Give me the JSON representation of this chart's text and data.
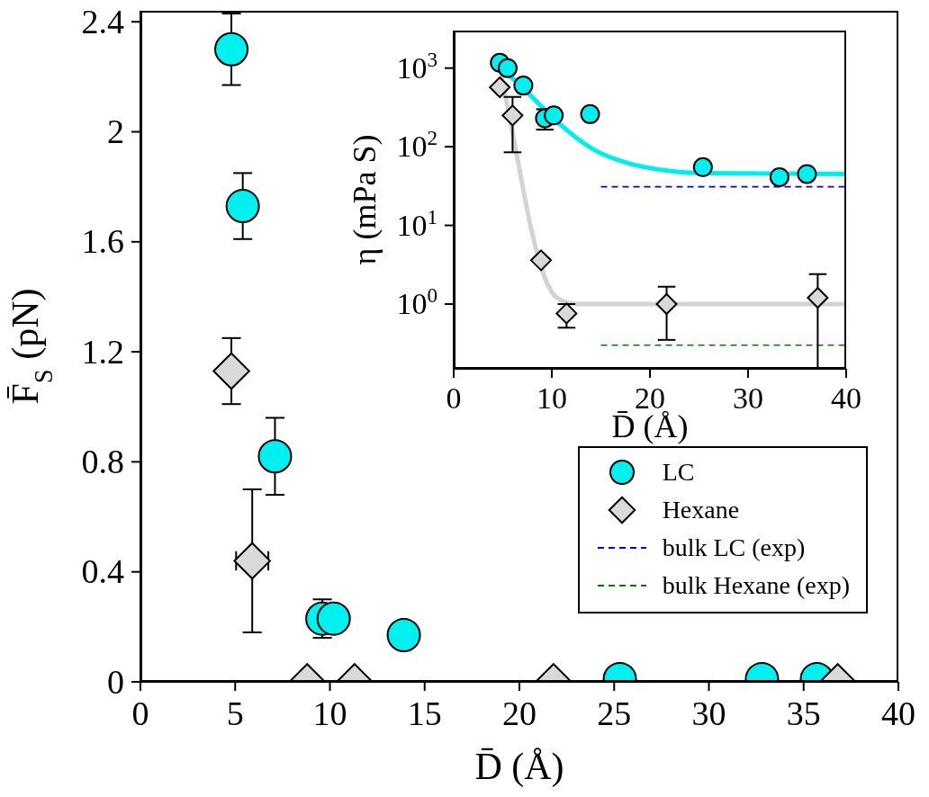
{
  "chart_data": [
    {
      "type": "scatter",
      "xlabel": "D̄ (Å)",
      "ylabel": "F̄$_{S}$ (pN)",
      "xlim": [
        0,
        40
      ],
      "xticks": [
        0,
        5,
        10,
        15,
        20,
        25,
        30,
        35,
        40
      ],
      "ylim": [
        0,
        2.44
      ],
      "yticks": [
        0,
        0.4,
        0.8,
        1.2,
        1.6,
        2,
        2.4
      ],
      "legend": "bottom right",
      "series": [
        {
          "name": "LC",
          "color": "#00f0f0",
          "marker": "circle",
          "x": [
            4.8,
            5.4,
            7.1,
            9.6,
            10.2,
            13.9,
            25.3,
            32.8,
            35.7
          ],
          "values": [
            2.3,
            1.73,
            0.82,
            0.23,
            0.23,
            0.17,
            0.01,
            0.01,
            0.01
          ],
          "errors": [
            0.13,
            0.12,
            0.14,
            0.07,
            null,
            null,
            null,
            null,
            null
          ]
        },
        {
          "name": "Hexane",
          "color": "#d9d9d9",
          "marker": "diamond",
          "x": [
            4.8,
            5.9,
            8.8,
            11.3,
            21.8,
            36.8
          ],
          "values": [
            1.13,
            0.44,
            0,
            0,
            0,
            0
          ],
          "errors": [
            0.12,
            0.26,
            null,
            null,
            null,
            null
          ],
          "xerrors": [
            null,
            0.85,
            null,
            null,
            null,
            null
          ]
        }
      ]
    },
    {
      "type": "scatter",
      "xlabel": "D̄ (Å)",
      "ylabel": "η (mPa S)",
      "log": "y",
      "xlim": [
        0,
        40
      ],
      "xticks": [
        0,
        10,
        20,
        30,
        40
      ],
      "ylim": [
        0.15,
        3000
      ],
      "yticks": [
        {
          "value": 1,
          "label": "10$^{0}$"
        },
        {
          "value": 10,
          "label": "10$^{1}$"
        },
        {
          "value": 100,
          "label": "10$^{2}$"
        },
        {
          "value": 1000,
          "label": "10$^{3}$"
        }
      ],
      "series": [
        {
          "type": "line",
          "color": "#00eeee",
          "x": [
            4.85,
            7.6,
            10.6,
            14.2,
            17.9,
            21.6,
            25.3,
            40
          ],
          "values": [
            1000,
            480,
            205,
            93,
            61,
            50,
            46,
            45
          ]
        },
        {
          "type": "line",
          "color": "#d3d3d3",
          "x": [
            4.7,
            5.8,
            6.9,
            8,
            9.1,
            10.6,
            12.4,
            40
          ],
          "values": [
            1000,
            205,
            38,
            7.9,
            2.5,
            1.18,
            1,
            1
          ]
        },
        {
          "type": "line",
          "name": "bulk LC (exp)",
          "color": "#0000ff",
          "line_style": "dashed",
          "x": [
            15,
            40
          ],
          "values": [
            31,
            31
          ]
        },
        {
          "type": "line",
          "name": "bulk Hexane (exp)",
          "color": "#008000",
          "line_style": "dashed",
          "x": [
            15,
            40
          ],
          "values": [
            0.3,
            0.3
          ]
        },
        {
          "color": "#00f0f0",
          "marker": "circle",
          "x": [
            4.7,
            5.5,
            7.1,
            9.3,
            10.2,
            13.9,
            25.4,
            33.2,
            36
          ],
          "values": [
            1170,
            1000,
            600,
            230,
            250,
            260,
            55,
            41,
            45
          ],
          "errors": [
            null,
            null,
            null,
            [
              165,
              300
            ],
            null,
            null,
            null,
            null,
            null
          ]
        },
        {
          "color": "#d9d9d9",
          "marker": "diamond",
          "x": [
            4.7,
            6,
            8.9,
            11.5,
            21.7,
            37.1
          ],
          "values": [
            570,
            250,
            3.6,
            0.76,
            1,
            1.2
          ],
          "errors": [
            null,
            [
              85,
              430
            ],
            null,
            [
              0.5,
              1
            ],
            [
              0.35,
              1.66
            ],
            [
              0.15,
              2.4
            ]
          ]
        }
      ]
    }
  ]
}
